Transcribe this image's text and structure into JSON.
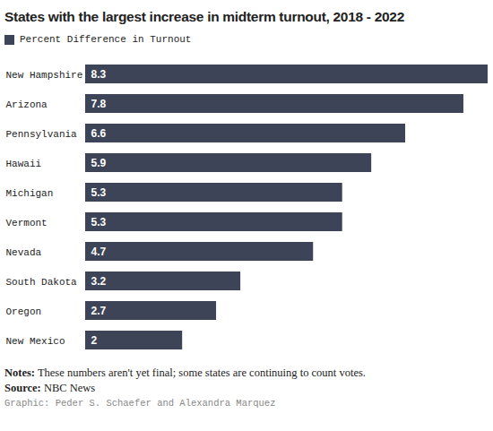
{
  "chart_data": {
    "type": "bar",
    "title": "States with the largest increase in midterm turnout, 2018 - 2022",
    "orientation": "horizontal",
    "categories": [
      "New Hampshire",
      "Arizona",
      "Pennsylvania",
      "Hawaii",
      "Michigan",
      "Vermont",
      "Nevada",
      "South Dakota",
      "Oregon",
      "New Mexico"
    ],
    "series": [
      {
        "name": "Percent Difference in Turnout",
        "color": "#3d4458",
        "values": [
          8.3,
          7.8,
          6.6,
          5.9,
          5.3,
          5.3,
          4.7,
          3.2,
          2.7,
          2
        ]
      }
    ],
    "xlim": [
      0,
      8.3
    ],
    "xticks": [],
    "tick_labels": "y",
    "data_labels": true,
    "legend": "top-left",
    "grid": false,
    "notes": {
      "label": "Notes:",
      "text": "These numbers aren't yet final; some states are continuing to count votes."
    },
    "source": {
      "label": "Source:",
      "text": "NBC News"
    },
    "credit": "Graphic: Peder S. Schaefer and Alexandra Marquez"
  }
}
